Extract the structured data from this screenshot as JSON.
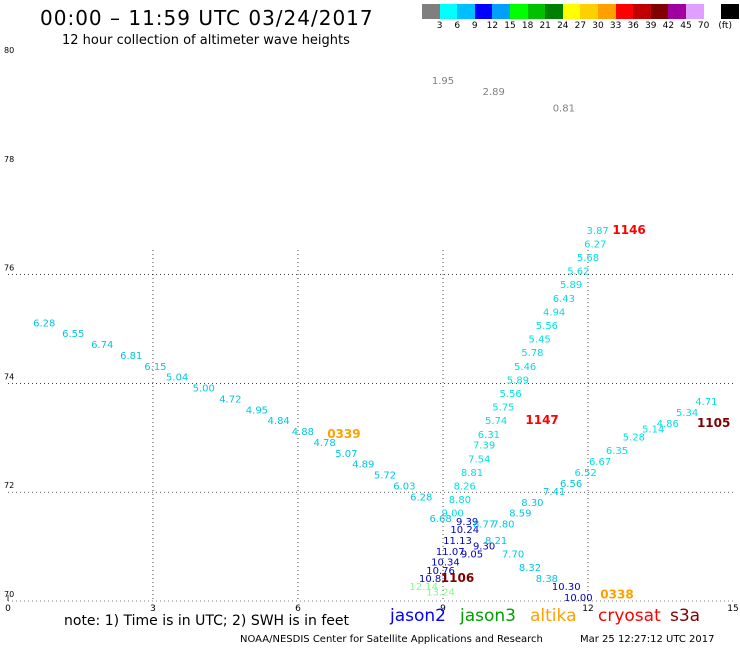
{
  "header": {
    "title": "00:00 – 11:59 UTC 03/24/2017",
    "subtitle": "12 hour collection of altimeter wave heights"
  },
  "colorbar": {
    "colors": [
      "#7f7f7f",
      "#00ffff",
      "#00bfff",
      "#0000ff",
      "#00a0ff",
      "#00ff00",
      "#00c000",
      "#008000",
      "#ffff00",
      "#ffd000",
      "#ffa000",
      "#ff0000",
      "#c00000",
      "#800000",
      "#a000a0",
      "#e0a0ff",
      "#ffffff",
      "#000000"
    ],
    "labels": [
      "3",
      "6",
      "9",
      "12",
      "15",
      "18",
      "21",
      "24",
      "27",
      "30",
      "33",
      "36",
      "39",
      "42",
      "45",
      "70",
      "(ft)"
    ]
  },
  "note": "note: 1) Time is in UTC; 2) SWH is in feet",
  "legend": [
    {
      "name": "jason2",
      "color": "#0000ff"
    },
    {
      "name": "jason3",
      "color": "#00a000"
    },
    {
      "name": "altika",
      "color": "#ffa000"
    },
    {
      "name": "cryosat",
      "color": "#ff0000"
    },
    {
      "name": "s3a",
      "color": "#800000"
    }
  ],
  "credit": "NOAA/NESDIS Center for Satellite Applications and Research",
  "timestamp": "Mar 25 12:27:12 UTC 2017",
  "chart_data": {
    "type": "scatter",
    "xlim": [
      0,
      15
    ],
    "ylim": [
      70,
      80
    ],
    "x_ticks": [
      "0",
      "3",
      "6",
      "9",
      "12",
      "15"
    ],
    "y_ticks": [
      "70",
      "72",
      "74",
      "76",
      "78",
      "80"
    ],
    "grid": true,
    "time_labels": [
      {
        "text": "0339",
        "x": 6.95,
        "y": 73.0,
        "color": "#ffa000"
      },
      {
        "text": "1147",
        "x": 11.05,
        "y": 73.25,
        "color": "#ff0000"
      },
      {
        "text": "1146",
        "x": 12.85,
        "y": 76.75,
        "color": "#ff0000"
      },
      {
        "text": "1105",
        "x": 14.6,
        "y": 73.2,
        "color": "#800000"
      },
      {
        "text": "1106",
        "x": 9.3,
        "y": 70.35,
        "color": "#800000"
      },
      {
        "text": "0338",
        "x": 12.6,
        "y": 70.05,
        "color": "#ffa000"
      }
    ],
    "points": [
      {
        "v": "1.95",
        "x": 9.0,
        "y": 79.5,
        "color": "#808080"
      },
      {
        "v": "2.89",
        "x": 10.05,
        "y": 79.3,
        "color": "#808080"
      },
      {
        "v": "0.81",
        "x": 11.5,
        "y": 79.0,
        "color": "#808080"
      },
      {
        "v": "6.28",
        "x": 0.75,
        "y": 75.05,
        "color": "#00c8e0"
      },
      {
        "v": "6.55",
        "x": 1.35,
        "y": 74.85,
        "color": "#00c8e0"
      },
      {
        "v": "6.74",
        "x": 1.95,
        "y": 74.65,
        "color": "#00c8e0"
      },
      {
        "v": "6.81",
        "x": 2.55,
        "y": 74.45,
        "color": "#00c8e0"
      },
      {
        "v": "6.15",
        "x": 3.05,
        "y": 74.25,
        "color": "#00c8e0"
      },
      {
        "v": "5.04",
        "x": 3.5,
        "y": 74.05,
        "color": "#00c8e0"
      },
      {
        "v": "5.00",
        "x": 4.05,
        "y": 73.85,
        "color": "#00c8e0"
      },
      {
        "v": "4.72",
        "x": 4.6,
        "y": 73.65,
        "color": "#00c8e0"
      },
      {
        "v": "4.95",
        "x": 5.15,
        "y": 73.45,
        "color": "#00c8e0"
      },
      {
        "v": "4.84",
        "x": 5.6,
        "y": 73.25,
        "color": "#00c8e0"
      },
      {
        "v": "4.88",
        "x": 6.1,
        "y": 73.05,
        "color": "#00c8e0"
      },
      {
        "v": "4.78",
        "x": 6.55,
        "y": 72.85,
        "color": "#00c8e0"
      },
      {
        "v": "5.07",
        "x": 7.0,
        "y": 72.65,
        "color": "#00c8e0"
      },
      {
        "v": "4.89",
        "x": 7.35,
        "y": 72.45,
        "color": "#00c8e0"
      },
      {
        "v": "5.72",
        "x": 7.8,
        "y": 72.25,
        "color": "#00c8e0"
      },
      {
        "v": "6.03",
        "x": 8.2,
        "y": 72.05,
        "color": "#00c8e0"
      },
      {
        "v": "6.28",
        "x": 8.55,
        "y": 71.85,
        "color": "#00c8e0"
      },
      {
        "v": "3.87",
        "x": 12.2,
        "y": 76.75,
        "color": "#00e0e0"
      },
      {
        "v": "6.27",
        "x": 12.15,
        "y": 76.5,
        "color": "#00e0e0"
      },
      {
        "v": "5.68",
        "x": 12.0,
        "y": 76.25,
        "color": "#00e0e0"
      },
      {
        "v": "5.62",
        "x": 11.8,
        "y": 76.0,
        "color": "#00e0e0"
      },
      {
        "v": "5.89",
        "x": 11.65,
        "y": 75.75,
        "color": "#00e0e0"
      },
      {
        "v": "6.43",
        "x": 11.5,
        "y": 75.5,
        "color": "#00e0e0"
      },
      {
        "v": "4.94",
        "x": 11.3,
        "y": 75.25,
        "color": "#00e0e0"
      },
      {
        "v": "5.56",
        "x": 11.15,
        "y": 75.0,
        "color": "#00e0e0"
      },
      {
        "v": "5.45",
        "x": 11.0,
        "y": 74.75,
        "color": "#00e0e0"
      },
      {
        "v": "5.78",
        "x": 10.85,
        "y": 74.5,
        "color": "#00e0e0"
      },
      {
        "v": "5.46",
        "x": 10.7,
        "y": 74.25,
        "color": "#00e0e0"
      },
      {
        "v": "5.89",
        "x": 10.55,
        "y": 74.0,
        "color": "#00e0e0"
      },
      {
        "v": "5.56",
        "x": 10.4,
        "y": 73.75,
        "color": "#00e0e0"
      },
      {
        "v": "5.75",
        "x": 10.25,
        "y": 73.5,
        "color": "#00e0e0"
      },
      {
        "v": "5.74",
        "x": 10.1,
        "y": 73.25,
        "color": "#00e0e0"
      },
      {
        "v": "6.31",
        "x": 9.95,
        "y": 73.0,
        "color": "#00e0e0"
      },
      {
        "v": "7.39",
        "x": 9.85,
        "y": 72.8,
        "color": "#00e0e0"
      },
      {
        "v": "7.54",
        "x": 9.75,
        "y": 72.55,
        "color": "#00e0e0"
      },
      {
        "v": "8.81",
        "x": 9.6,
        "y": 72.3,
        "color": "#00e0e0"
      },
      {
        "v": "8.26",
        "x": 9.45,
        "y": 72.05,
        "color": "#00e0e0"
      },
      {
        "v": "8.80",
        "x": 9.35,
        "y": 71.8,
        "color": "#00e0e0"
      },
      {
        "v": "9.00",
        "x": 9.2,
        "y": 71.55,
        "color": "#00e0e0"
      },
      {
        "v": "6.68",
        "x": 8.95,
        "y": 71.45,
        "color": "#00c8e0"
      },
      {
        "v": "9.39",
        "x": 9.5,
        "y": 71.4,
        "color": "#0000c0"
      },
      {
        "v": "10.24",
        "x": 9.45,
        "y": 71.25,
        "color": "#0000c0"
      },
      {
        "v": "11.13",
        "x": 9.3,
        "y": 71.05,
        "color": "#0000c0"
      },
      {
        "v": "11.07",
        "x": 9.15,
        "y": 70.85,
        "color": "#0000c0"
      },
      {
        "v": "10.34",
        "x": 9.05,
        "y": 70.65,
        "color": "#0000c0"
      },
      {
        "v": "10.76",
        "x": 8.95,
        "y": 70.5,
        "color": "#0000c0"
      },
      {
        "v": "10.81",
        "x": 8.8,
        "y": 70.35,
        "color": "#0000c0"
      },
      {
        "v": "9.05",
        "x": 9.6,
        "y": 70.8,
        "color": "#0000c0"
      },
      {
        "v": "9.30",
        "x": 9.85,
        "y": 70.95,
        "color": "#0000c0"
      },
      {
        "v": "12.14",
        "x": 8.6,
        "y": 70.2,
        "color": "#80ff80"
      },
      {
        "v": "13.24",
        "x": 8.95,
        "y": 70.1,
        "color": "#80ff80"
      },
      {
        "v": "4.71",
        "x": 14.45,
        "y": 73.6,
        "color": "#00e0e0"
      },
      {
        "v": "5.34",
        "x": 14.05,
        "y": 73.4,
        "color": "#00e0e0"
      },
      {
        "v": "4.86",
        "x": 13.65,
        "y": 73.2,
        "color": "#00e0e0"
      },
      {
        "v": "5.14",
        "x": 13.35,
        "y": 73.1,
        "color": "#00e0e0"
      },
      {
        "v": "5.28",
        "x": 12.95,
        "y": 72.95,
        "color": "#00e0e0"
      },
      {
        "v": "6.35",
        "x": 12.6,
        "y": 72.7,
        "color": "#00e0e0"
      },
      {
        "v": "6.67",
        "x": 12.25,
        "y": 72.5,
        "color": "#00e0e0"
      },
      {
        "v": "6.52",
        "x": 11.95,
        "y": 72.3,
        "color": "#00e0e0"
      },
      {
        "v": "6.56",
        "x": 11.65,
        "y": 72.1,
        "color": "#00c8e0"
      },
      {
        "v": "7.41",
        "x": 11.3,
        "y": 71.95,
        "color": "#00c8e0"
      },
      {
        "v": "8.30",
        "x": 10.85,
        "y": 71.75,
        "color": "#00c8e0"
      },
      {
        "v": "8.59",
        "x": 10.6,
        "y": 71.55,
        "color": "#00c8e0"
      },
      {
        "v": "7.80",
        "x": 10.25,
        "y": 71.35,
        "color": "#00c8e0"
      },
      {
        "v": "8.77",
        "x": 9.85,
        "y": 71.35,
        "color": "#00c8e0"
      },
      {
        "v": "8.21",
        "x": 10.1,
        "y": 71.05,
        "color": "#00c8e0"
      },
      {
        "v": "7.70",
        "x": 10.45,
        "y": 70.8,
        "color": "#00c8e0"
      },
      {
        "v": "8.32",
        "x": 10.8,
        "y": 70.55,
        "color": "#00c8e0"
      },
      {
        "v": "8.38",
        "x": 11.15,
        "y": 70.35,
        "color": "#00c8e0"
      },
      {
        "v": "10.30",
        "x": 11.55,
        "y": 70.2,
        "color": "#0000c0"
      },
      {
        "v": "10.00",
        "x": 11.8,
        "y": 70.0,
        "color": "#0000c0"
      }
    ]
  }
}
